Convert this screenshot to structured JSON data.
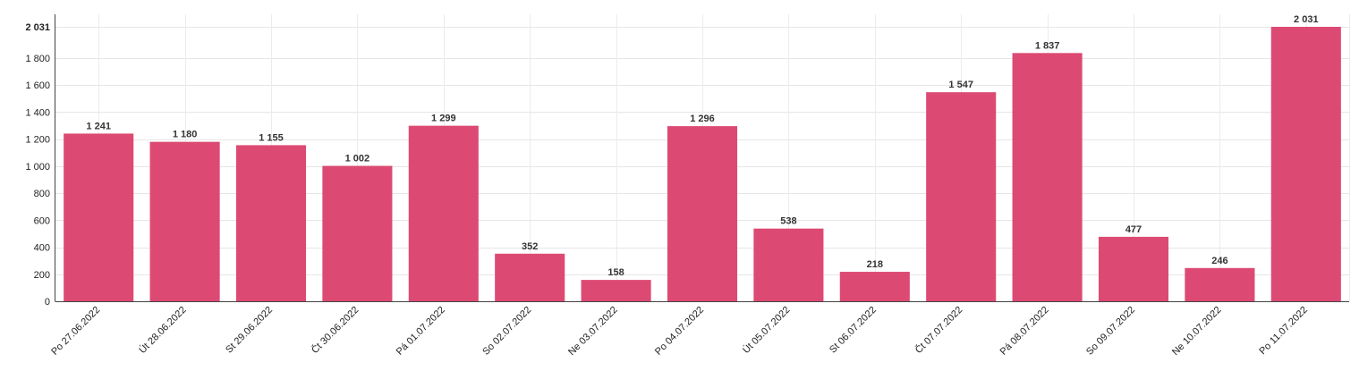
{
  "chart_data": {
    "type": "bar",
    "categories": [
      "Po 27.06.2022",
      "Út 28.06.2022",
      "St 29.06.2022",
      "Čt 30.06.2022",
      "Pá 01.07.2022",
      "So 02.07.2022",
      "Ne 03.07.2022",
      "Po 04.07.2022",
      "Út 05.07.2022",
      "St 06.07.2022",
      "Čt 07.07.2022",
      "Pá 08.07.2022",
      "So 09.07.2022",
      "Ne 10.07.2022",
      "Po 11.07.2022"
    ],
    "values": [
      1241,
      1180,
      1155,
      1002,
      1299,
      352,
      158,
      1296,
      538,
      218,
      1547,
      1837,
      477,
      246,
      2031
    ],
    "data_labels": [
      "1 241",
      "1 180",
      "1 155",
      "1 002",
      "1 299",
      "352",
      "158",
      "1 296",
      "538",
      "218",
      "1 547",
      "1 837",
      "477",
      "246",
      "2 031"
    ],
    "y_ticks": [
      0,
      200,
      400,
      600,
      800,
      1000,
      1200,
      1400,
      1600,
      1800
    ],
    "y_tick_labels": [
      "0",
      "200",
      "400",
      "600",
      "800",
      "1 000",
      "1 200",
      "1 400",
      "1 600",
      "1 800"
    ],
    "y_max_label": "2 031",
    "ylim": [
      0,
      2031
    ],
    "grid": true,
    "bar_color": "#dc4a73",
    "title": "",
    "xlabel": "",
    "ylabel": ""
  }
}
